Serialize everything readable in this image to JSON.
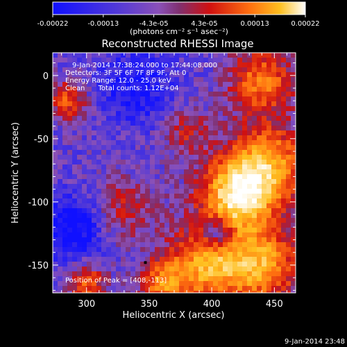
{
  "chart_data": {
    "type": "heatmap",
    "title": "Reconstructed RHESSI Image",
    "xlabel": "Heliocentric X (arcsec)",
    "ylabel": "Heliocentric Y (arcsec)",
    "xlim": [
      273,
      467
    ],
    "ylim": [
      -172,
      18
    ],
    "xticks": [
      300,
      350,
      400,
      450
    ],
    "yticks": [
      0,
      -50,
      -100,
      -150
    ],
    "colorbar": {
      "ticks": [
        "-0.00022",
        "-0.00013",
        "-4.3e-05",
        "4.3e-05",
        "0.00013",
        "0.00022"
      ],
      "range": [
        -0.00022,
        0.00022
      ],
      "unit_label": "(photons cm⁻² s⁻¹ asec⁻²)"
    },
    "annotations": [
      "9-Jan-2014 17:38:24.000 to 17:44:08.000",
      "Detectors: 3F 5F 6F 7F 8F 9F, Att 0",
      "Energy Range: 12.0 - 25.0 keV",
      "Clean      Total counts: 1.12E+04",
      "Position of Peak = [408,-113]"
    ],
    "peak": [
      408,
      -113
    ],
    "footer_timestamp": "9-Jan-2014 23:48"
  }
}
